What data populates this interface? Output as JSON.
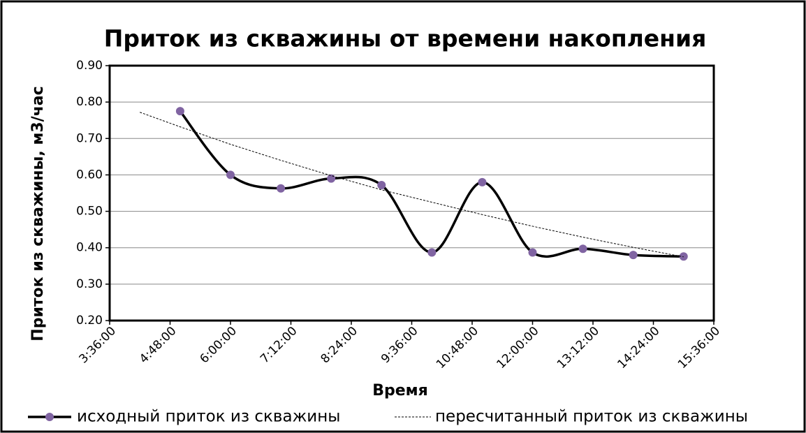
{
  "chart_data": {
    "type": "line",
    "title": "Приток из скважины от времени накопления",
    "x_label": "Время",
    "y_label": "Приток из скважины,  м3/час",
    "xlim": [
      3.6,
      15.6
    ],
    "xticks": [
      {
        "value": 3.6,
        "label": "3:36:00"
      },
      {
        "value": 4.8,
        "label": "4:48:00"
      },
      {
        "value": 6,
        "label": "6:00:00"
      },
      {
        "value": 7.2,
        "label": "7:12:00"
      },
      {
        "value": 8.4,
        "label": "8:24:00"
      },
      {
        "value": 9.6,
        "label": "9:36:00"
      },
      {
        "value": 10.8,
        "label": "10:48:00"
      },
      {
        "value": 12,
        "label": "12:00:00"
      },
      {
        "value": 13.2,
        "label": "13:12:00"
      },
      {
        "value": 14.4,
        "label": "14:24:00"
      },
      {
        "value": 15.6,
        "label": "15:36:00"
      }
    ],
    "ylim": [
      0.2,
      0.9
    ],
    "yticks": [
      {
        "value": 0.2,
        "label": "0.20"
      },
      {
        "value": 0.3,
        "label": "0.30"
      },
      {
        "value": 0.4,
        "label": "0.40"
      },
      {
        "value": 0.5,
        "label": "0.50"
      },
      {
        "value": 0.6,
        "label": "0.60"
      },
      {
        "value": 0.7,
        "label": "0.70"
      },
      {
        "value": 0.8,
        "label": "0.80"
      },
      {
        "value": 0.9,
        "label": "0.90"
      }
    ],
    "grid": true,
    "legend": "bottom",
    "series": [
      {
        "name": "исходный приток из скважины",
        "color": "#000000",
        "marker_color": "#8064a2",
        "style": "smooth",
        "x": [
          5,
          6,
          7,
          8,
          9,
          10,
          11,
          12,
          13,
          14,
          15
        ],
        "values": [
          0.775,
          0.6,
          0.563,
          0.59,
          0.572,
          0.387,
          0.58,
          0.387,
          0.397,
          0.38,
          0.376
        ]
      },
      {
        "name": "пересчитанный приток из скважины",
        "color": "#000000",
        "style": "dashed",
        "x": [
          4.2,
          5,
          6,
          7,
          8,
          9,
          10,
          11,
          12,
          13,
          14,
          15
        ],
        "values": [
          0.772,
          0.732,
          0.684,
          0.64,
          0.598,
          0.559,
          0.525,
          0.491,
          0.459,
          0.429,
          0.401,
          0.375
        ]
      }
    ]
  }
}
